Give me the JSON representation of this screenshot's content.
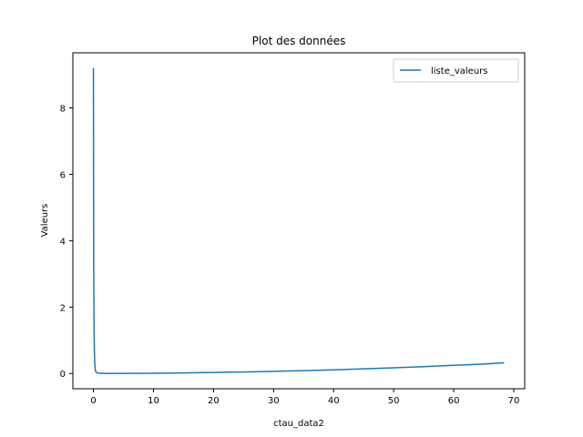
{
  "chart_data": {
    "type": "line",
    "title": "Plot des données",
    "xlabel": "ctau_data2",
    "ylabel": "Valeurs",
    "xlim": [
      -3.42,
      71.82
    ],
    "ylim": [
      -0.46,
      9.66
    ],
    "xticks": [
      0,
      10,
      20,
      30,
      40,
      50,
      60,
      70
    ],
    "yticks": [
      0,
      2,
      4,
      6,
      8
    ],
    "grid": false,
    "legend": {
      "position": "top-right",
      "entries": [
        "liste_valeurs"
      ]
    },
    "series": [
      {
        "name": "liste_valeurs",
        "color": "#1f77b4",
        "x": [
          0.0,
          0.02,
          0.05,
          0.1,
          0.15,
          0.2,
          0.3,
          0.4,
          0.6,
          0.8,
          1.0,
          2,
          5,
          10,
          15,
          20,
          25,
          30,
          35,
          40,
          45,
          50,
          55,
          60,
          65,
          68.4
        ],
        "y": [
          9.2,
          6.0,
          3.2,
          1.6,
          0.8,
          0.4,
          0.12,
          0.05,
          0.02,
          0.01,
          0.01,
          0.0,
          0.002,
          0.008,
          0.018,
          0.03,
          0.045,
          0.065,
          0.085,
          0.11,
          0.14,
          0.17,
          0.205,
          0.245,
          0.285,
          0.32
        ]
      }
    ]
  }
}
